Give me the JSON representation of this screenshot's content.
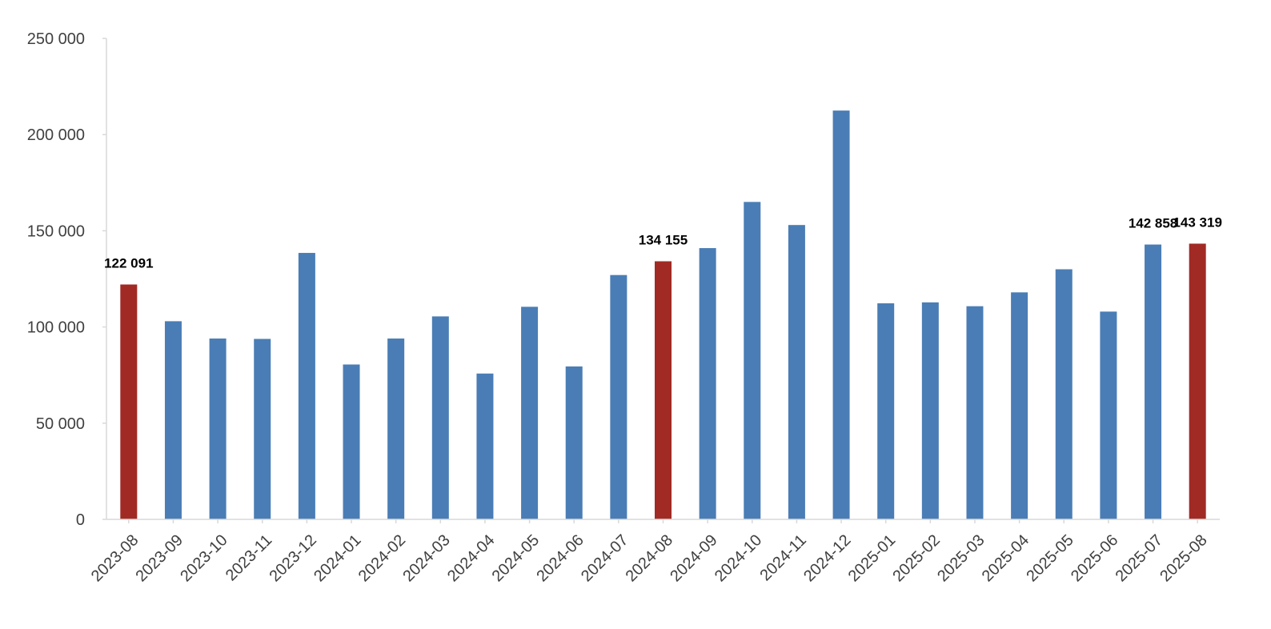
{
  "chart_data": {
    "type": "bar",
    "title": "",
    "xlabel": "",
    "ylabel": "",
    "ylim": [
      0,
      250000
    ],
    "yticks": [
      0,
      50000,
      100000,
      150000,
      200000,
      250000
    ],
    "ytick_labels": [
      "0",
      "50 000",
      "100 000",
      "150 000",
      "200 000",
      "250 000"
    ],
    "grid": false,
    "categories": [
      "2023-08",
      "2023-09",
      "2023-10",
      "2023-11",
      "2023-12",
      "2024-01",
      "2024-02",
      "2024-03",
      "2024-04",
      "2024-05",
      "2024-06",
      "2024-07",
      "2024-08",
      "2024-09",
      "2024-10",
      "2024-11",
      "2024-12",
      "2025-01",
      "2025-02",
      "2025-03",
      "2025-04",
      "2025-05",
      "2025-06",
      "2025-07",
      "2025-08"
    ],
    "values": [
      122091,
      103000,
      94000,
      93800,
      138500,
      80500,
      94000,
      105500,
      75800,
      110500,
      79500,
      127000,
      134155,
      141000,
      165000,
      153000,
      212500,
      112300,
      112800,
      110800,
      118000,
      130000,
      108000,
      142858,
      143319
    ],
    "highlighted": [
      "2023-08",
      "2024-08",
      "2025-08"
    ],
    "data_labels": [
      {
        "category": "2023-08",
        "text": "122 091"
      },
      {
        "category": "2024-08",
        "text": "134 155"
      },
      {
        "category": "2025-07",
        "text": "142 858"
      },
      {
        "category": "2025-08",
        "text": "143 319"
      }
    ],
    "colors": {
      "default": "#4a7db5",
      "highlight": "#a12a25",
      "axis": "#d9d9d9"
    }
  }
}
